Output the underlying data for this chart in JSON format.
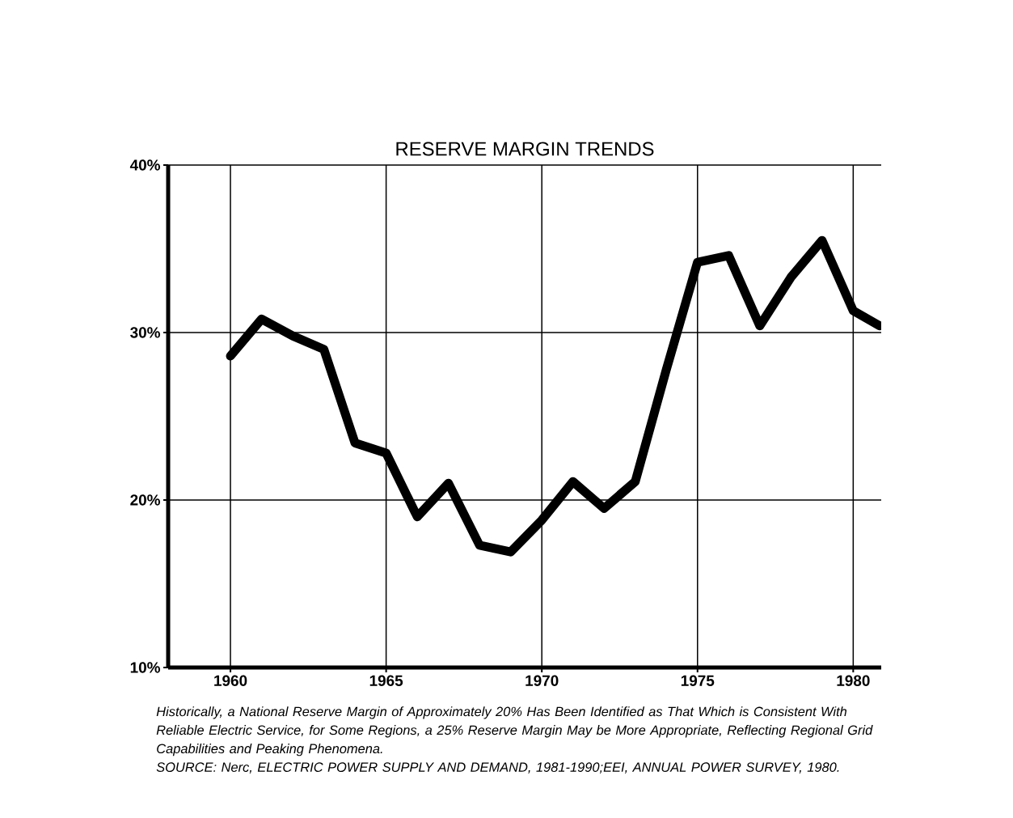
{
  "chart_data": {
    "type": "line",
    "title": "RESERVE MARGIN TRENDS",
    "x": [
      1960,
      1961,
      1962,
      1963,
      1964,
      1965,
      1966,
      1967,
      1968,
      1969,
      1970,
      1971,
      1972,
      1973,
      1974,
      1975,
      1976,
      1977,
      1978,
      1979,
      1980,
      1980.85
    ],
    "series": [
      {
        "color": "#000000",
        "values": [
          28.6,
          30.8,
          29.8,
          29.0,
          23.4,
          22.8,
          19.0,
          21.0,
          17.3,
          16.9,
          18.8,
          21.1,
          19.5,
          21.1,
          27.8,
          34.2,
          34.6,
          30.4,
          33.3,
          35.5,
          31.3,
          30.4
        ]
      }
    ],
    "xlim": [
      1958,
      1980.9
    ],
    "xticks": [
      1960,
      1965,
      1970,
      1975,
      1980
    ],
    "ylim": [
      10,
      40
    ],
    "yticks": [
      {
        "value": 10,
        "label": "10%"
      },
      {
        "value": 20,
        "label": "20%"
      },
      {
        "value": 30,
        "label": "30%"
      },
      {
        "value": 40,
        "label": "40%"
      }
    ],
    "grid": true,
    "marker": "none",
    "line_style": "solid",
    "annotations": [
      "Historically, a National Reserve Margin of Approximately 20% Has Been Identified as That Which is Consistent With Reliable Electric Service, for Some Regions, a 25% Reserve Margin May be More Appropriate, Reflecting Regional Grid Capabilities and Peaking Phenomena.",
      "SOURCE: Nerc, ELECTRIC POWER SUPPLY AND DEMAND, 1981-1990;EEI, ANNUAL POWER SURVEY, 1980."
    ]
  }
}
